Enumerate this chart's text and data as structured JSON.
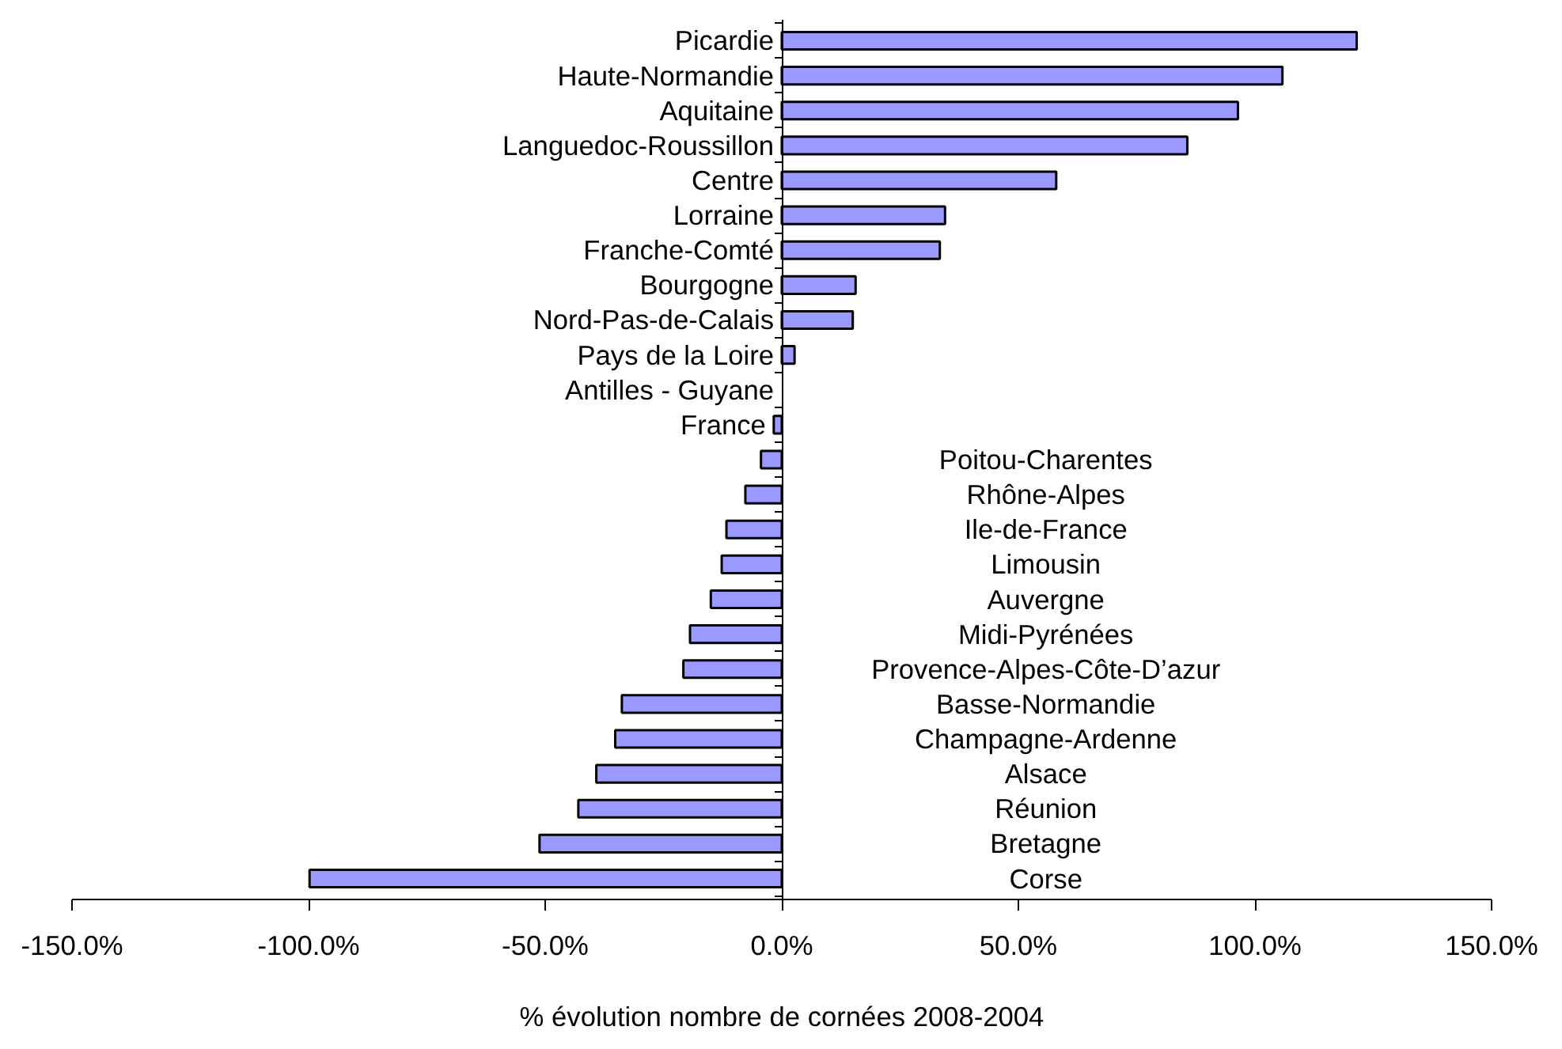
{
  "chart_data": {
    "type": "bar",
    "orientation": "horizontal",
    "xlabel": "% évolution nombre de cornées 2008-2004",
    "categories": [
      "Picardie",
      "Haute-Normandie",
      "Aquitaine",
      "Languedoc-Roussillon",
      "Centre",
      "Lorraine",
      "Franche-Comté",
      "Bourgogne",
      "Nord-Pas-de-Calais",
      "Pays de la Loire",
      "Antilles - Guyane",
      "France",
      "Poitou-Charentes",
      "Rhône-Alpes",
      "Ile-de-France",
      "Limousin",
      "Auvergne",
      "Midi-Pyrénées",
      "Provence-Alpes-Côte-D’azur",
      "Basse-Normandie",
      "Champagne-Ardenne",
      "Alsace",
      "Réunion",
      "Bretagne",
      "Corse"
    ],
    "values": [
      121.5,
      105.8,
      96.4,
      85.7,
      58,
      34.5,
      33.4,
      15.6,
      15,
      2.7,
      0,
      -1.7,
      -4.4,
      -7.7,
      -11.7,
      -12.7,
      -15,
      -19.4,
      -20.8,
      -33.8,
      -35.2,
      -39.2,
      -43,
      -51.2,
      -99.8
    ],
    "color": "#9999ff",
    "xlim": [
      -150,
      150
    ],
    "xticks": [
      {
        "value": -150,
        "label": "-150.0%"
      },
      {
        "value": -100,
        "label": "-100.0%"
      },
      {
        "value": -50,
        "label": "-50.0%"
      },
      {
        "value": 0,
        "label": "0.0%"
      },
      {
        "value": 50,
        "label": "50.0%"
      },
      {
        "value": 100,
        "label": "100.0%"
      },
      {
        "value": 150,
        "label": "150.0%"
      }
    ],
    "grid": false
  }
}
